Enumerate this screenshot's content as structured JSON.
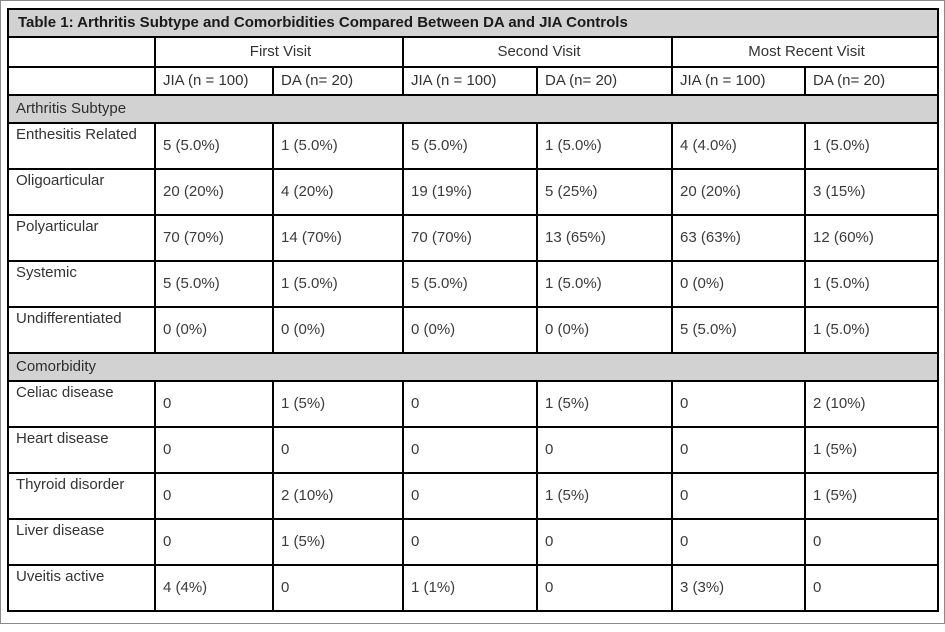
{
  "title": "Table 1: Arthritis Subtype and Comorbidities Compared Between DA and JIA Controls",
  "columns": {
    "visit_groups": [
      "First Visit",
      "Second Visit",
      "Most Recent Visit"
    ],
    "subheaders": [
      "JIA (n = 100)",
      "DA (n= 20)",
      "JIA (n = 100)",
      "DA (n= 20)",
      "JIA (n = 100)",
      "DA (n= 20)"
    ]
  },
  "sections": [
    {
      "label": "Arthritis Subtype",
      "rows": [
        {
          "label": "Enthesitis Related",
          "values": [
            "5 (5.0%)",
            "1 (5.0%)",
            "5 (5.0%)",
            "1 (5.0%)",
            "4 (4.0%)",
            "1 (5.0%)"
          ]
        },
        {
          "label": "Oligoarticular",
          "values": [
            "20 (20%)",
            "4 (20%)",
            "19 (19%)",
            "5 (25%)",
            "20 (20%)",
            "3 (15%)"
          ]
        },
        {
          "label": "Polyarticular",
          "values": [
            "70 (70%)",
            "14 (70%)",
            "70 (70%)",
            "13 (65%)",
            "63 (63%)",
            "12 (60%)"
          ]
        },
        {
          "label": "Systemic",
          "values": [
            "5 (5.0%)",
            "1 (5.0%)",
            "5 (5.0%)",
            "1 (5.0%)",
            "0 (0%)",
            "1 (5.0%)"
          ]
        },
        {
          "label": "Undifferentiated",
          "values": [
            "0 (0%)",
            "0 (0%)",
            "0 (0%)",
            "0 (0%)",
            "5 (5.0%)",
            "1 (5.0%)"
          ]
        }
      ]
    },
    {
      "label": "Comorbidity",
      "rows": [
        {
          "label": "Celiac disease",
          "values": [
            "0",
            "1 (5%)",
            "0",
            "1 (5%)",
            "0",
            "2 (10%)"
          ]
        },
        {
          "label": "Heart disease",
          "values": [
            "0",
            "0",
            "0",
            "0",
            "0",
            "1 (5%)"
          ]
        },
        {
          "label": "Thyroid disorder",
          "values": [
            "0",
            "2 (10%)",
            "0",
            "1 (5%)",
            "0",
            "1 (5%)"
          ]
        },
        {
          "label": "Liver disease",
          "values": [
            "0",
            "1 (5%)",
            "0",
            "0",
            "0",
            "0"
          ]
        },
        {
          "label": "Uveitis active",
          "values": [
            "4 (4%)",
            "0",
            "1 (1%)",
            "0",
            "3 (3%)",
            "0"
          ]
        }
      ]
    }
  ],
  "colors": {
    "header_bg": "#d2d2d2",
    "section_bg": "#d2d2d2",
    "border": "#000000",
    "title_text": "#1a1a1a",
    "body_text": "#3b3b3b"
  }
}
